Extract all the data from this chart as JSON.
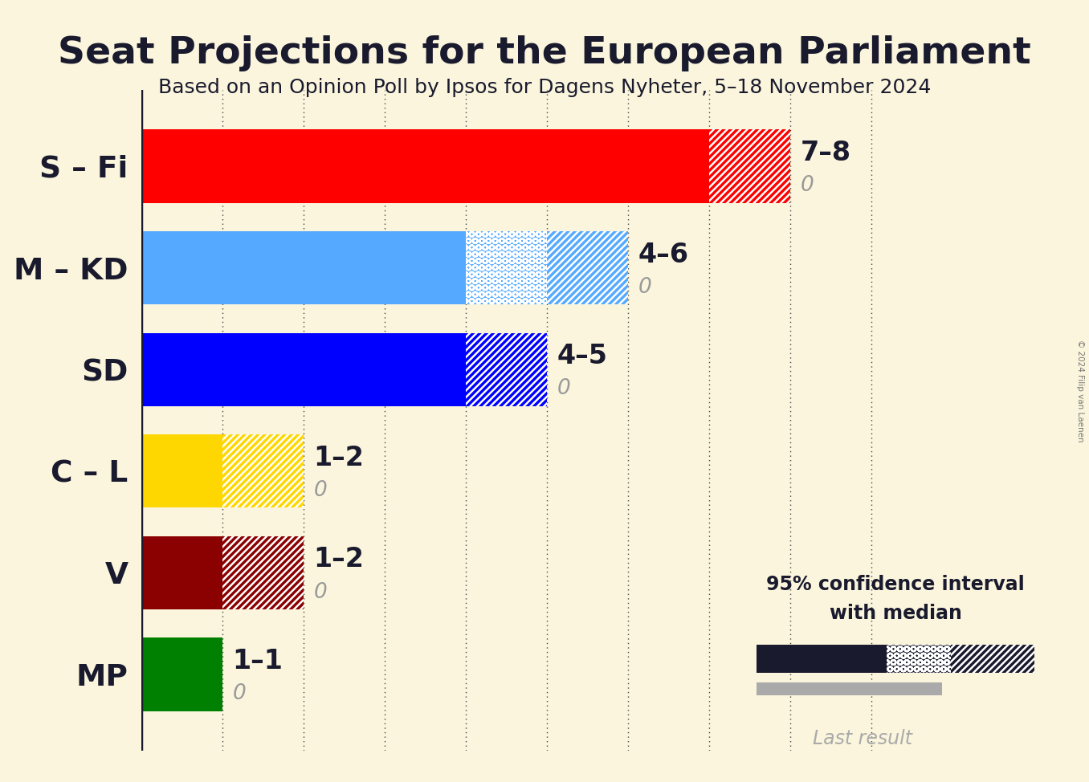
{
  "title": "Seat Projections for the European Parliament",
  "subtitle": "Based on an Opinion Poll by Ipsos for Dagens Nyheter, 5–18 November 2024",
  "copyright": "© 2024 Filip van Laenen",
  "background_color": "#FAF5DC",
  "parties": [
    "S – Fi",
    "M – KD",
    "SD",
    "C – L",
    "V",
    "MP"
  ],
  "solid_colors": [
    "#FF0000",
    "#55AAFF",
    "#0000FF",
    "#FFD700",
    "#8B0000",
    "#008000"
  ],
  "ci_low": [
    7,
    4,
    4,
    1,
    1,
    1
  ],
  "median_low": [
    7,
    4,
    4,
    1,
    1,
    1
  ],
  "median_high": [
    7,
    5,
    4,
    1,
    1,
    1
  ],
  "ci_high": [
    8,
    6,
    5,
    2,
    2,
    1
  ],
  "last_result": [
    0,
    0,
    0,
    0,
    0,
    0
  ],
  "labels": [
    "7–8",
    "4–6",
    "4–5",
    "1–2",
    "1–2",
    "1–1"
  ],
  "xlim": [
    0,
    10
  ],
  "bar_height": 0.72,
  "grid_lines": [
    1,
    2,
    3,
    4,
    5,
    6,
    7,
    8,
    9
  ],
  "hatch_scale": 2.5,
  "title_fontsize": 34,
  "subtitle_fontsize": 18,
  "label_fontsize": 24,
  "ytick_fontsize": 27
}
